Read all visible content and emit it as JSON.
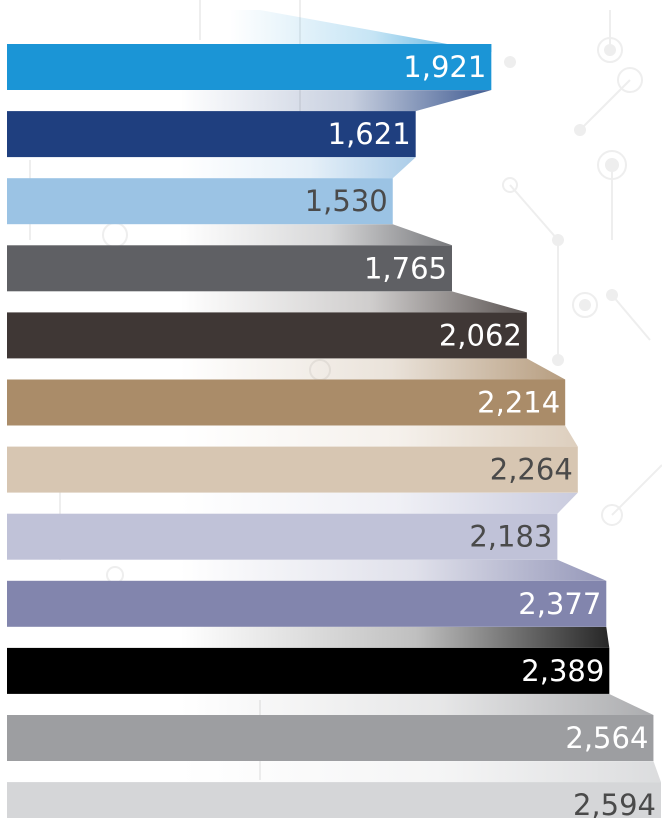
{
  "chart_data": {
    "type": "bar",
    "orientation": "horizontal",
    "title": "",
    "xlabel": "",
    "ylabel": "",
    "xlim": [
      0,
      2594
    ],
    "grid": false,
    "legend": "none",
    "values": [
      1921,
      1621,
      1530,
      1765,
      2062,
      2214,
      2264,
      2183,
      2377,
      2389,
      2564,
      2594
    ],
    "labels": [
      "1,921",
      "1,621",
      "1,530",
      "1,765",
      "2,062",
      "2,214",
      "2,264",
      "2,183",
      "2,377",
      "2,389",
      "2,564",
      "2,594"
    ],
    "colors": [
      "#1b95d6",
      "#1f3f7f",
      "#9bc3e4",
      "#5f6064",
      "#3f3735",
      "#aa8c69",
      "#d7c6b2",
      "#c0c2d8",
      "#8285ad",
      "#000000",
      "#9d9ea1",
      "#d5d6d8"
    ],
    "label_colors": [
      "#ffffff",
      "#ffffff",
      "#4a4a4a",
      "#ffffff",
      "#ffffff",
      "#ffffff",
      "#4a4a4a",
      "#4a4a4a",
      "#ffffff",
      "#ffffff",
      "#ffffff",
      "#4a4a4a"
    ]
  }
}
